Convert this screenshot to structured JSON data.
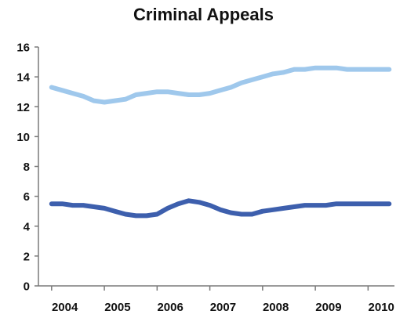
{
  "chart_data": {
    "type": "line",
    "title": "Criminal Appeals",
    "xlabel": "",
    "ylabel": "",
    "ylim": [
      0,
      16
    ],
    "yticks": [
      0,
      2,
      4,
      6,
      8,
      10,
      12,
      14,
      16
    ],
    "xlim": [
      2003.75,
      2010.5
    ],
    "xtick_positions": [
      2004.25,
      2005.25,
      2006.25,
      2007.25,
      2008.25,
      2009.25,
      2010.25
    ],
    "categories": [
      "2004",
      "2005",
      "2006",
      "2007",
      "2008",
      "2009",
      "2010"
    ],
    "grid": false,
    "legend": "none",
    "colors": {
      "series_1": "#9fc8ec",
      "series_2": "#3d5fad",
      "axis": "#7a7a7a"
    },
    "series": [
      {
        "x": [
          2004.0,
          2004.2,
          2004.4,
          2004.6,
          2004.8,
          2005.0,
          2005.2,
          2005.4,
          2005.6,
          2005.8,
          2006.0,
          2006.2,
          2006.4,
          2006.6,
          2006.8,
          2007.0,
          2007.2,
          2007.4,
          2007.6,
          2007.8,
          2008.0,
          2008.2,
          2008.4,
          2008.6,
          2008.8,
          2009.0,
          2009.2,
          2009.4,
          2009.6,
          2009.8,
          2010.0,
          2010.2,
          2010.4
        ],
        "values": [
          13.3,
          13.1,
          12.9,
          12.7,
          12.4,
          12.3,
          12.4,
          12.5,
          12.8,
          12.9,
          13.0,
          13.0,
          12.9,
          12.8,
          12.8,
          12.9,
          13.1,
          13.3,
          13.6,
          13.8,
          14.0,
          14.2,
          14.3,
          14.5,
          14.5,
          14.6,
          14.6,
          14.6,
          14.5,
          14.5,
          14.5,
          14.5,
          14.5
        ]
      },
      {
        "x": [
          2004.0,
          2004.2,
          2004.4,
          2004.6,
          2004.8,
          2005.0,
          2005.2,
          2005.4,
          2005.6,
          2005.8,
          2006.0,
          2006.2,
          2006.4,
          2006.6,
          2006.8,
          2007.0,
          2007.2,
          2007.4,
          2007.6,
          2007.8,
          2008.0,
          2008.2,
          2008.4,
          2008.6,
          2008.8,
          2009.0,
          2009.2,
          2009.4,
          2009.6,
          2009.8,
          2010.0,
          2010.2,
          2010.4
        ],
        "values": [
          5.5,
          5.5,
          5.4,
          5.4,
          5.3,
          5.2,
          5.0,
          4.8,
          4.7,
          4.7,
          4.8,
          5.2,
          5.5,
          5.7,
          5.6,
          5.4,
          5.1,
          4.9,
          4.8,
          4.8,
          5.0,
          5.1,
          5.2,
          5.3,
          5.4,
          5.4,
          5.4,
          5.5,
          5.5,
          5.5,
          5.5,
          5.5,
          5.5
        ]
      }
    ]
  }
}
